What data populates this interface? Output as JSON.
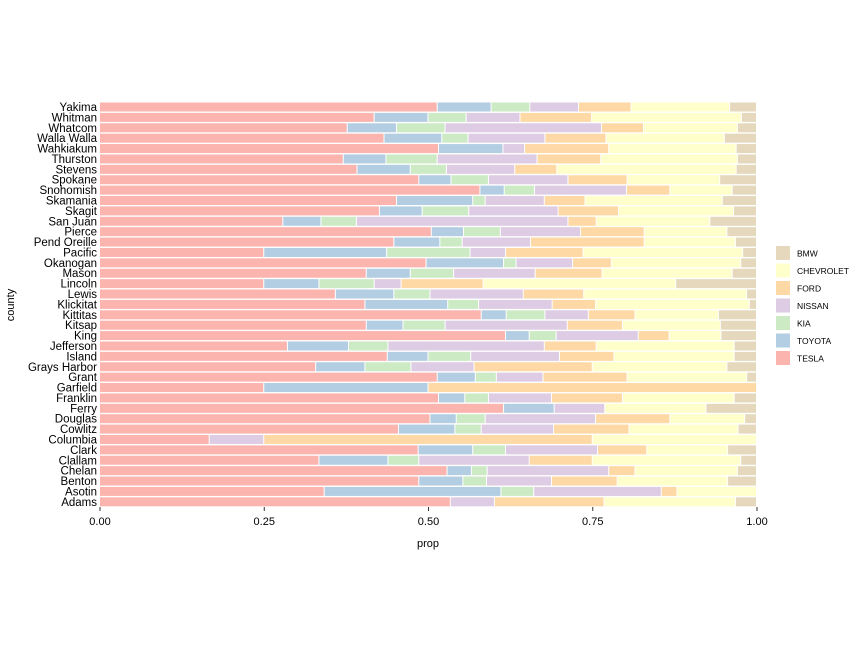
{
  "chart_data": {
    "type": "bar",
    "orientation": "horizontal",
    "stacked": true,
    "title": "",
    "xlabel": "prop",
    "ylabel": "county",
    "xlim": [
      0,
      1
    ],
    "x_ticks": [
      "0.00",
      "0.25",
      "0.50",
      "0.75",
      "1.00"
    ],
    "x_tick_values": [
      0,
      0.25,
      0.5,
      0.75,
      1
    ],
    "grid": false,
    "legend_position": "right",
    "series_order": [
      "TESLA",
      "TOYOTA",
      "KIA",
      "NISSAN",
      "FORD",
      "CHEVROLET",
      "BMW"
    ],
    "legend": [
      "BMW",
      "CHEVROLET",
      "FORD",
      "NISSAN",
      "KIA",
      "TOYOTA",
      "TESLA"
    ],
    "colors": {
      "TESLA": "#FBB4AE",
      "TOYOTA": "#B3CDE3",
      "KIA": "#CCEBC5",
      "NISSAN": "#DECBE4",
      "FORD": "#FED9A6",
      "CHEVROLET": "#FFFFCC",
      "BMW": "#E5D8BD"
    },
    "categories": [
      "Yakima",
      "Whitman",
      "Whatcom",
      "Walla Walla",
      "Wahkiakum",
      "Thurston",
      "Stevens",
      "Spokane",
      "Snohomish",
      "Skamania",
      "Skagit",
      "San Juan",
      "Pierce",
      "Pend Oreille",
      "Pacific",
      "Okanogan",
      "Mason",
      "Lincoln",
      "Lewis",
      "Klickitat",
      "Kittitas",
      "Kitsap",
      "King",
      "Jefferson",
      "Island",
      "Grays Harbor",
      "Grant",
      "Garfield",
      "Franklin",
      "Ferry",
      "Douglas",
      "Cowlitz",
      "Columbia",
      "Clark",
      "Clallam",
      "Chelan",
      "Benton",
      "Asotin",
      "Adams"
    ],
    "values": [
      [
        0.514,
        0.082,
        0.059,
        0.074,
        0.08,
        0.15,
        0.041
      ],
      [
        0.418,
        0.082,
        0.058,
        0.082,
        0.109,
        0.228,
        0.023
      ],
      [
        0.377,
        0.075,
        0.074,
        0.238,
        0.064,
        0.143,
        0.029
      ],
      [
        0.433,
        0.088,
        0.04,
        0.117,
        0.093,
        0.18,
        0.049
      ],
      [
        0.516,
        0.098,
        0.0,
        0.033,
        0.128,
        0.194,
        0.031
      ],
      [
        0.371,
        0.065,
        0.078,
        0.152,
        0.097,
        0.208,
        0.029
      ],
      [
        0.392,
        0.081,
        0.055,
        0.104,
        0.064,
        0.273,
        0.031
      ],
      [
        0.486,
        0.049,
        0.057,
        0.121,
        0.09,
        0.141,
        0.056
      ],
      [
        0.579,
        0.037,
        0.046,
        0.14,
        0.066,
        0.095,
        0.037
      ],
      [
        0.452,
        0.116,
        0.019,
        0.09,
        0.062,
        0.209,
        0.052
      ],
      [
        0.426,
        0.065,
        0.071,
        0.136,
        0.092,
        0.175,
        0.035
      ],
      [
        0.279,
        0.058,
        0.054,
        0.322,
        0.043,
        0.173,
        0.071
      ],
      [
        0.505,
        0.049,
        0.056,
        0.122,
        0.097,
        0.126,
        0.045
      ],
      [
        0.448,
        0.07,
        0.034,
        0.104,
        0.173,
        0.139,
        0.032
      ],
      [
        0.25,
        0.187,
        0.127,
        0.054,
        0.118,
        0.243,
        0.021
      ],
      [
        0.497,
        0.118,
        0.019,
        0.086,
        0.059,
        0.197,
        0.024
      ],
      [
        0.406,
        0.067,
        0.066,
        0.124,
        0.102,
        0.198,
        0.037
      ],
      [
        0.25,
        0.084,
        0.084,
        0.041,
        0.125,
        0.293,
        0.123
      ],
      [
        0.359,
        0.089,
        0.055,
        0.142,
        0.092,
        0.248,
        0.015
      ],
      [
        0.404,
        0.126,
        0.047,
        0.112,
        0.066,
        0.234,
        0.011
      ],
      [
        0.581,
        0.038,
        0.059,
        0.066,
        0.071,
        0.127,
        0.058
      ],
      [
        0.406,
        0.056,
        0.064,
        0.186,
        0.084,
        0.149,
        0.055
      ],
      [
        0.618,
        0.036,
        0.041,
        0.125,
        0.047,
        0.079,
        0.054
      ],
      [
        0.286,
        0.093,
        0.06,
        0.238,
        0.079,
        0.21,
        0.034
      ],
      [
        0.438,
        0.062,
        0.065,
        0.135,
        0.083,
        0.183,
        0.034
      ],
      [
        0.329,
        0.075,
        0.07,
        0.096,
        0.18,
        0.205,
        0.045
      ],
      [
        0.514,
        0.058,
        0.032,
        0.071,
        0.128,
        0.182,
        0.015
      ],
      [
        0.25,
        0.25,
        0.0,
        0.0,
        0.5,
        0.0,
        0.0
      ],
      [
        0.516,
        0.04,
        0.036,
        0.096,
        0.108,
        0.17,
        0.034
      ],
      [
        0.615,
        0.077,
        0.0,
        0.077,
        0.0,
        0.154,
        0.077
      ],
      [
        0.503,
        0.04,
        0.044,
        0.168,
        0.113,
        0.114,
        0.018
      ],
      [
        0.455,
        0.086,
        0.04,
        0.11,
        0.115,
        0.166,
        0.028
      ],
      [
        0.167,
        0.0,
        0.0,
        0.083,
        0.5,
        0.25,
        0.0
      ],
      [
        0.485,
        0.083,
        0.05,
        0.14,
        0.075,
        0.123,
        0.044
      ],
      [
        0.334,
        0.105,
        0.047,
        0.168,
        0.096,
        0.226,
        0.024
      ],
      [
        0.529,
        0.037,
        0.024,
        0.185,
        0.04,
        0.156,
        0.029
      ],
      [
        0.486,
        0.067,
        0.036,
        0.099,
        0.1,
        0.168,
        0.044
      ],
      [
        0.342,
        0.269,
        0.05,
        0.194,
        0.024,
        0.121,
        0.0
      ],
      [
        0.534,
        0.0,
        0.0,
        0.067,
        0.167,
        0.2,
        0.032
      ]
    ]
  }
}
